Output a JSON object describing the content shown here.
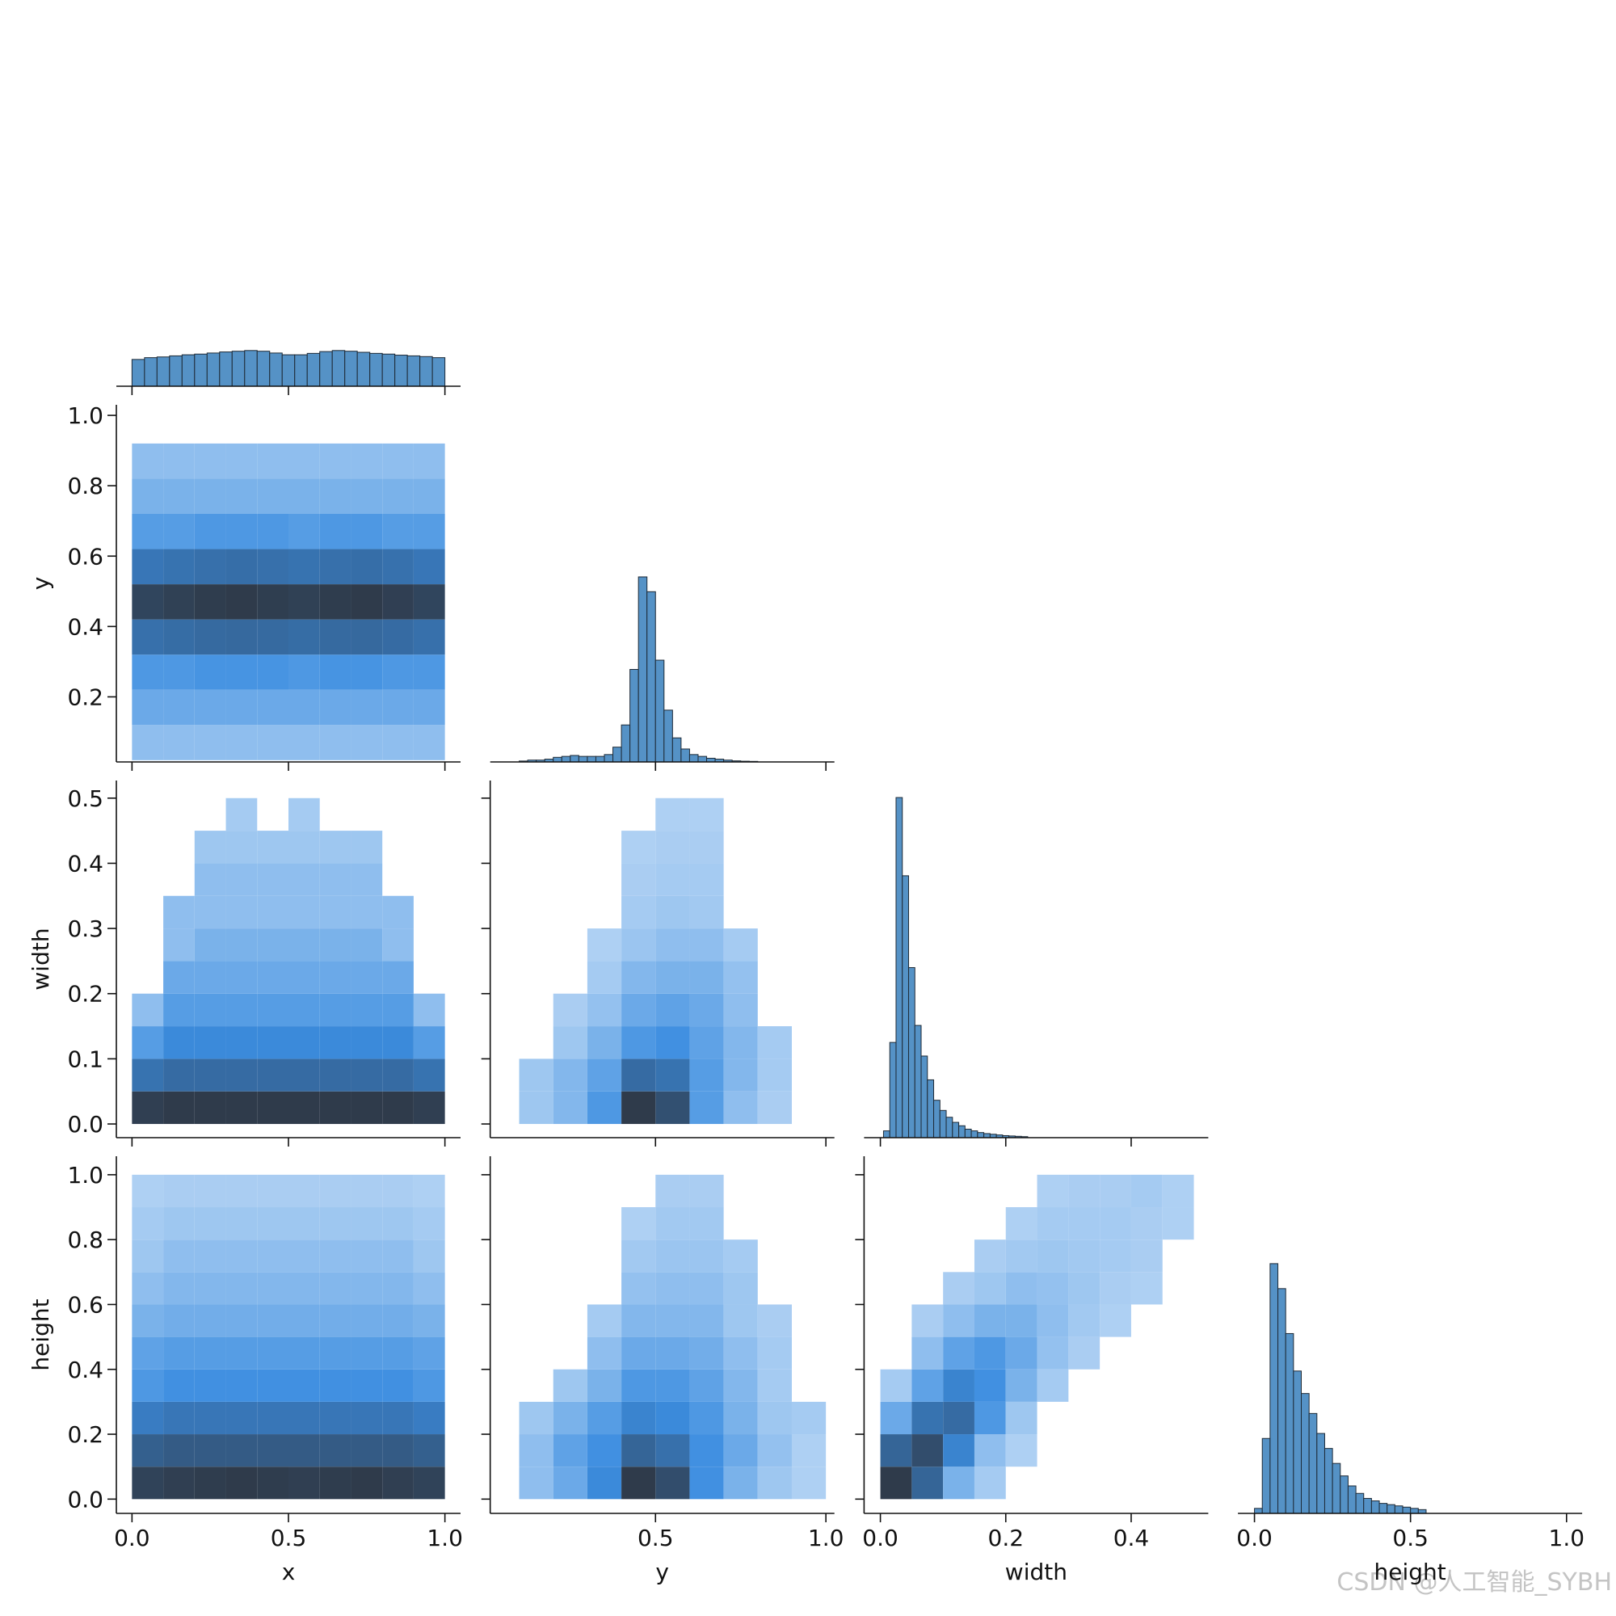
{
  "cmap": [
    "#b3d3f4",
    "#3b8de0",
    "#2f3b4b"
  ],
  "watermark": "CSDN @人工智能_SYBH",
  "chart_data": [
    {
      "type": "histogram",
      "color": "#5592c6",
      "bins": [
        0,
        0.04,
        0.08,
        0.12,
        0.16,
        0.2,
        0.24,
        0.28,
        0.32,
        0.36,
        0.4,
        0.44,
        0.48,
        0.52,
        0.56,
        0.6,
        0.64,
        0.68,
        0.72,
        0.76,
        0.8,
        0.84,
        0.88,
        0.92,
        0.96,
        1
      ],
      "values": [
        0.75,
        0.8,
        0.82,
        0.85,
        0.88,
        0.9,
        0.93,
        0.96,
        0.98,
        1.0,
        0.98,
        0.93,
        0.88,
        0.88,
        0.92,
        0.97,
        1.0,
        0.98,
        0.95,
        0.92,
        0.9,
        0.87,
        0.85,
        0.83,
        0.8
      ],
      "xlim": [
        -0.05,
        1.05
      ],
      "ylim": [
        0,
        10
      ],
      "xticks": [
        0,
        0.5,
        1
      ]
    },
    {
      "type": "hist2d",
      "ylabel": "y",
      "xbins": [
        0,
        0.1,
        0.2,
        0.3,
        0.4,
        0.5,
        0.6,
        0.7,
        0.8,
        0.9,
        1
      ],
      "ybins": [
        0.02,
        0.12,
        0.22,
        0.32,
        0.42,
        0.52,
        0.62,
        0.72,
        0.82,
        0.92
      ],
      "counts": [
        [
          1,
          1,
          1,
          1,
          1,
          1,
          1,
          1,
          1,
          1
        ],
        [
          3,
          3,
          3,
          3,
          3,
          3,
          3,
          3,
          3,
          3
        ],
        [
          6,
          6,
          7,
          7,
          7,
          6,
          7,
          7,
          6,
          6
        ],
        [
          22,
          24,
          26,
          27,
          26,
          24,
          26,
          27,
          25,
          22
        ],
        [
          75,
          85,
          95,
          100,
          92,
          85,
          95,
          100,
          88,
          75
        ],
        [
          18,
          20,
          22,
          23,
          22,
          20,
          22,
          23,
          21,
          18
        ],
        [
          5,
          5,
          6,
          6,
          6,
          5,
          6,
          6,
          5,
          5
        ],
        [
          2,
          2,
          2,
          2,
          2,
          2,
          2,
          2,
          2,
          2
        ],
        [
          1,
          1,
          1,
          1,
          1,
          1,
          1,
          1,
          1,
          1
        ]
      ],
      "xlim": [
        -0.05,
        1.05
      ],
      "ylim": [
        0.015,
        1.03
      ],
      "xticks": [
        0,
        0.5,
        1
      ],
      "yticks": [
        0.2,
        0.4,
        0.6,
        0.8,
        {
          "value": 1,
          "label": "1.0"
        }
      ]
    },
    {
      "type": "histogram",
      "color": "#5592c6",
      "bins": [
        0.1,
        0.125,
        0.15,
        0.175,
        0.2,
        0.225,
        0.25,
        0.275,
        0.3,
        0.325,
        0.35,
        0.375,
        0.4,
        0.425,
        0.45,
        0.475,
        0.5,
        0.525,
        0.55,
        0.575,
        0.6,
        0.625,
        0.65,
        0.675,
        0.7,
        0.725,
        0.75,
        0.775,
        0.8
      ],
      "values": [
        0.5,
        1,
        1,
        1.5,
        2.5,
        3,
        3.5,
        3,
        3,
        3,
        4,
        8,
        20,
        50,
        100,
        92,
        55,
        28,
        13,
        7,
        4,
        3,
        2,
        1.5,
        1,
        0.6,
        0.4,
        0.3
      ],
      "xlim": [
        0.015,
        1.025
      ],
      "ylim": [
        0,
        193
      ],
      "xticks": [
        0.5,
        1
      ]
    },
    {
      "type": "hist2d",
      "ylabel": "width",
      "xbins": [
        0,
        0.1,
        0.2,
        0.3,
        0.4,
        0.5,
        0.6,
        0.7,
        0.8,
        0.9,
        1
      ],
      "ybins": [
        0,
        0.05,
        0.1,
        0.15,
        0.2,
        0.25,
        0.3,
        0.35,
        0.4,
        0.45,
        0.5
      ],
      "counts": [
        [
          90,
          100,
          100,
          100,
          100,
          100,
          100,
          100,
          100,
          90
        ],
        [
          20,
          25,
          25,
          25,
          25,
          25,
          25,
          25,
          25,
          20
        ],
        [
          5,
          10,
          10,
          10,
          10,
          10,
          10,
          10,
          10,
          5
        ],
        [
          1,
          5,
          5,
          5,
          5,
          5,
          5,
          5,
          5,
          1
        ],
        [
          0,
          3,
          3,
          3,
          3,
          3,
          3,
          3,
          3,
          0
        ],
        [
          0,
          1,
          2,
          2,
          2,
          2,
          2,
          2,
          1,
          0
        ],
        [
          0,
          1,
          1,
          1,
          1,
          1,
          1,
          1,
          1,
          0
        ],
        [
          0,
          0,
          1,
          1,
          1,
          1,
          1,
          1,
          0,
          0
        ],
        [
          0,
          0,
          0.5,
          0.5,
          0.5,
          0.5,
          0.5,
          0.5,
          0,
          0
        ],
        [
          0,
          0,
          0,
          0.3,
          0,
          0.3,
          0,
          0,
          0,
          0
        ]
      ],
      "xlim": [
        -0.05,
        1.05
      ],
      "ylim": [
        -0.021,
        0.527
      ],
      "xticks": [
        0,
        0.5,
        1
      ],
      "yticks": [
        {
          "value": 0,
          "label": "0.0"
        },
        0.1,
        0.2,
        0.3,
        0.4,
        0.5
      ]
    },
    {
      "type": "hist2d",
      "xbins": [
        0.1,
        0.2,
        0.3,
        0.4,
        0.5,
        0.6,
        0.7,
        0.8,
        0.9,
        1
      ],
      "ybins": [
        0,
        0.05,
        0.1,
        0.15,
        0.2,
        0.25,
        0.3,
        0.35,
        0.4,
        0.45,
        0.5
      ],
      "counts": [
        [
          0.5,
          1.5,
          6,
          100,
          55,
          5,
          1,
          0.2,
          0
        ],
        [
          0.5,
          1.5,
          4,
          25,
          20,
          5,
          1.5,
          0.3,
          0
        ],
        [
          0,
          0.5,
          2,
          6,
          8,
          4,
          1.5,
          0.3,
          0
        ],
        [
          0,
          0.2,
          0.8,
          3,
          4,
          3,
          1,
          0,
          0
        ],
        [
          0,
          0,
          0.3,
          1.5,
          2,
          2,
          0.8,
          0,
          0
        ],
        [
          0,
          0,
          0.1,
          0.6,
          1,
          1,
          0.3,
          0,
          0
        ],
        [
          0,
          0,
          0,
          0.3,
          0.5,
          0.4,
          0,
          0,
          0
        ],
        [
          0,
          0,
          0,
          0.2,
          0.3,
          0.3,
          0,
          0,
          0
        ],
        [
          0,
          0,
          0,
          0.1,
          0.2,
          0.2,
          0,
          0,
          0
        ],
        [
          0,
          0,
          0,
          0,
          0.1,
          0.1,
          0,
          0,
          0
        ]
      ],
      "xlim": [
        0.015,
        1.025
      ],
      "ylim": [
        -0.021,
        0.527
      ],
      "xticks": [
        0.5,
        1
      ],
      "yticks": [
        0,
        0.1,
        0.2,
        0.3,
        0.4,
        0.5
      ]
    },
    {
      "type": "histogram",
      "color": "#5592c6",
      "bins": [
        0.005,
        0.015,
        0.025,
        0.035,
        0.045,
        0.055,
        0.065,
        0.075,
        0.085,
        0.095,
        0.105,
        0.115,
        0.125,
        0.135,
        0.145,
        0.155,
        0.165,
        0.175,
        0.185,
        0.195,
        0.205,
        0.215,
        0.225,
        0.235
      ],
      "values": [
        2,
        28,
        100,
        77,
        50,
        33,
        24,
        17,
        11,
        8,
        6,
        4.5,
        3.5,
        2.5,
        2,
        1.5,
        1.2,
        1,
        0.8,
        0.6,
        0.5,
        0.4,
        0.3
      ],
      "xlim": [
        -0.026,
        0.523
      ],
      "ylim": [
        0,
        105
      ],
      "xticks": [
        0,
        0.2,
        0.4
      ]
    },
    {
      "type": "hist2d",
      "ylabel": "height",
      "xlabel": "x",
      "xbins": [
        0,
        0.1,
        0.2,
        0.3,
        0.4,
        0.5,
        0.6,
        0.7,
        0.8,
        0.9,
        1
      ],
      "ybins": [
        0,
        0.1,
        0.2,
        0.3,
        0.4,
        0.5,
        0.6,
        0.7,
        0.8,
        0.9,
        1
      ],
      "counts": [
        [
          80,
          90,
          95,
          100,
          95,
          90,
          95,
          100,
          90,
          80
        ],
        [
          35,
          40,
          40,
          40,
          40,
          40,
          40,
          40,
          40,
          35
        ],
        [
          15,
          18,
          18,
          18,
          18,
          18,
          18,
          18,
          18,
          15
        ],
        [
          6,
          8,
          8,
          8,
          8,
          8,
          8,
          8,
          8,
          6
        ],
        [
          4,
          5,
          5,
          5,
          5,
          5,
          5,
          5,
          5,
          4
        ],
        [
          2,
          2.5,
          2.5,
          2.5,
          2.5,
          2.5,
          2.5,
          2.5,
          2.5,
          2
        ],
        [
          1,
          1.5,
          1.5,
          1.5,
          1.5,
          1.5,
          1.5,
          1.5,
          1.5,
          1
        ],
        [
          0.5,
          1,
          1,
          1,
          1,
          1,
          1,
          1,
          1,
          0.5
        ],
        [
          0.3,
          0.5,
          0.5,
          0.5,
          0.5,
          0.5,
          0.5,
          0.5,
          0.5,
          0.3
        ],
        [
          0.1,
          0.2,
          0.2,
          0.2,
          0.2,
          0.2,
          0.2,
          0.2,
          0.2,
          0.1
        ]
      ],
      "xlim": [
        -0.05,
        1.05
      ],
      "ylim": [
        -0.044,
        1.057
      ],
      "xticks": [
        {
          "value": 0,
          "label": "0.0"
        },
        0.5,
        {
          "value": 1,
          "label": "1.0"
        }
      ],
      "yticks": [
        {
          "value": 0,
          "label": "0.0"
        },
        0.2,
        0.4,
        0.6,
        0.8,
        {
          "value": 1,
          "label": "1.0"
        }
      ]
    },
    {
      "type": "hist2d",
      "xlabel": "y",
      "xbins": [
        0.1,
        0.2,
        0.3,
        0.4,
        0.5,
        0.6,
        0.7,
        0.8,
        0.9,
        1
      ],
      "ybins": [
        0,
        0.1,
        0.2,
        0.3,
        0.4,
        0.5,
        0.6,
        0.7,
        0.8,
        0.9,
        1
      ],
      "counts": [
        [
          1,
          3,
          10,
          100,
          60,
          8,
          2,
          0.5,
          0.1
        ],
        [
          1,
          4,
          8,
          30,
          22,
          8,
          3,
          0.8,
          0.1
        ],
        [
          0.5,
          2,
          5,
          12,
          10,
          6,
          2,
          0.5,
          0.3
        ],
        [
          0,
          0.5,
          2,
          6,
          6,
          4,
          1.5,
          0.3,
          0
        ],
        [
          0,
          0,
          1,
          3,
          3,
          2.5,
          1,
          0.3,
          0
        ],
        [
          0,
          0,
          0.3,
          1.5,
          1.5,
          1.5,
          0.5,
          0.2,
          0
        ],
        [
          0,
          0,
          0,
          0.8,
          1,
          1,
          0.5,
          0,
          0
        ],
        [
          0,
          0,
          0,
          0.4,
          0.6,
          0.6,
          0.3,
          0,
          0
        ],
        [
          0,
          0,
          0,
          0.1,
          0.4,
          0.4,
          0,
          0,
          0
        ],
        [
          0,
          0,
          0,
          0,
          0.2,
          0.2,
          0,
          0,
          0
        ]
      ],
      "xlim": [
        0.015,
        1.025
      ],
      "ylim": [
        -0.044,
        1.057
      ],
      "xticks": [
        0.5,
        {
          "value": 1,
          "label": "1.0"
        }
      ],
      "yticks": [
        0,
        0.2,
        0.4,
        0.6,
        0.8,
        1
      ]
    },
    {
      "type": "hist2d",
      "xlabel": "width",
      "xbins": [
        0,
        0.05,
        0.1,
        0.15,
        0.2,
        0.25,
        0.3,
        0.35,
        0.4,
        0.45,
        0.5
      ],
      "ybins": [
        0,
        0.1,
        0.2,
        0.3,
        0.4,
        0.5,
        0.6,
        0.7,
        0.8,
        0.9,
        1
      ],
      "counts": [
        [
          100,
          30,
          2,
          0.3,
          0,
          0,
          0,
          0,
          0,
          0
        ],
        [
          30,
          60,
          12,
          1,
          0.1,
          0,
          0,
          0,
          0,
          0
        ],
        [
          3,
          20,
          25,
          6,
          0.5,
          0,
          0,
          0,
          0,
          0
        ],
        [
          0.3,
          4,
          12,
          8,
          2,
          0.3,
          0,
          0,
          0,
          0
        ],
        [
          0,
          1,
          4,
          6,
          3,
          0.8,
          0.2,
          0,
          0,
          0
        ],
        [
          0,
          0.2,
          1,
          2,
          2,
          1,
          0.4,
          0.1,
          0,
          0
        ],
        [
          0,
          0,
          0.2,
          0.5,
          1,
          0.8,
          0.5,
          0.2,
          0.1,
          0
        ],
        [
          0,
          0,
          0,
          0.2,
          0.4,
          0.5,
          0.4,
          0.3,
          0.2,
          0
        ],
        [
          0,
          0,
          0,
          0,
          0.1,
          0.3,
          0.3,
          0.3,
          0.2,
          0.1
        ],
        [
          0,
          0,
          0,
          0,
          0,
          0.1,
          0.2,
          0.2,
          0.3,
          0.1
        ]
      ],
      "xlim": [
        -0.026,
        0.523
      ],
      "ylim": [
        -0.044,
        1.057
      ],
      "xticks": [
        {
          "value": 0,
          "label": "0.0"
        },
        0.2,
        0.4
      ],
      "yticks": [
        0,
        0.2,
        0.4,
        0.6,
        0.8,
        1
      ]
    },
    {
      "type": "histogram",
      "color": "#5592c6",
      "xlabel": "height",
      "bins": [
        0,
        0.025,
        0.05,
        0.075,
        0.1,
        0.125,
        0.15,
        0.175,
        0.2,
        0.225,
        0.25,
        0.275,
        0.3,
        0.325,
        0.35,
        0.375,
        0.4,
        0.425,
        0.45,
        0.475,
        0.5,
        0.525,
        0.55
      ],
      "values": [
        2,
        30,
        100,
        90,
        72,
        57,
        48,
        40,
        32,
        26,
        20,
        15,
        11,
        8,
        6,
        5,
        4,
        3.5,
        3,
        2.5,
        2,
        1.5
      ],
      "xlim": [
        -0.053,
        1.05
      ],
      "ylim": [
        0,
        143
      ],
      "xticks": [
        {
          "value": 0,
          "label": "0.0"
        },
        0.5,
        {
          "value": 1,
          "label": "1.0"
        }
      ]
    }
  ]
}
